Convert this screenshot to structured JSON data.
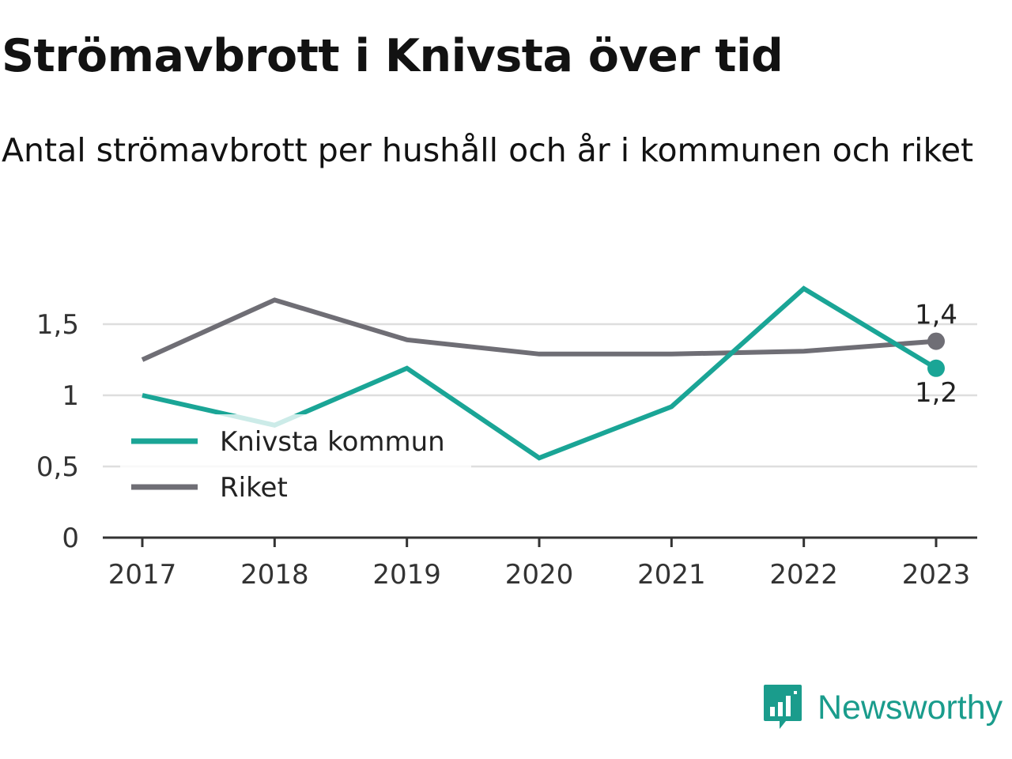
{
  "header": {
    "title": "Strömavbrott i Knivsta över tid",
    "subtitle": "Antal strömavbrott per hushåll och år i kommunen och riket"
  },
  "brand": {
    "name": "Newsworthy",
    "icon": "newsworthy-logo-icon",
    "color": "#1a9c8c"
  },
  "chart_data": {
    "type": "line",
    "title": "Strömavbrott i Knivsta över tid",
    "subtitle": "Antal strömavbrott per hushåll och år i kommunen och riket",
    "x": [
      "2017",
      "2018",
      "2019",
      "2020",
      "2021",
      "2022",
      "2023"
    ],
    "ylim": [
      0,
      1.8
    ],
    "yticks": [
      0,
      0.5,
      1,
      1.5
    ],
    "ytick_labels": [
      "0",
      "0,5",
      "1",
      "1,5"
    ],
    "grid": true,
    "legend": "left",
    "series": [
      {
        "name": "Knivsta kommun",
        "color": "#1aa596",
        "values": [
          1.0,
          0.79,
          1.19,
          0.56,
          0.92,
          1.75,
          1.19
        ],
        "end_label": "1,2"
      },
      {
        "name": "Riket",
        "color": "#6f6e75",
        "values": [
          1.25,
          1.67,
          1.39,
          1.29,
          1.29,
          1.31,
          1.38
        ],
        "end_label": "1,4"
      }
    ]
  }
}
